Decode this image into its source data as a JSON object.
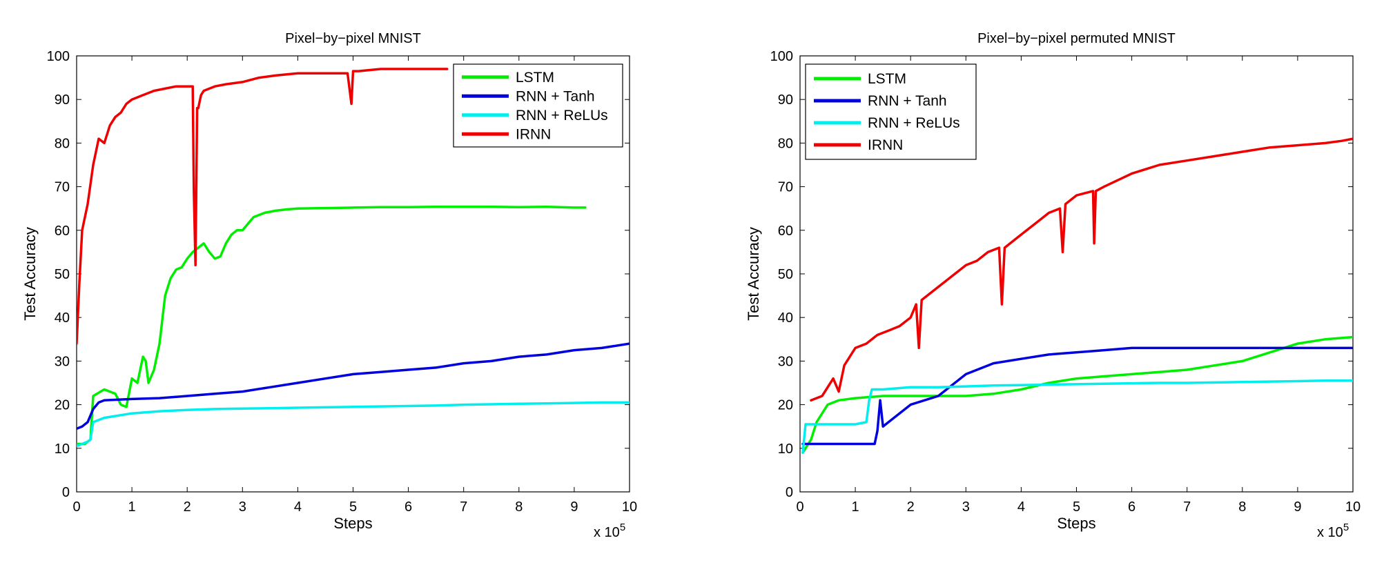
{
  "chart_data": [
    {
      "type": "line",
      "title": "Pixel−by−pixel MNIST",
      "xlabel": "Steps",
      "ylabel": "Test Accuracy",
      "x_multiplier": "x 10",
      "x_multiplier_exp": "5",
      "xlim": [
        0,
        10
      ],
      "ylim": [
        0,
        100
      ],
      "xticks": [
        "0",
        "1",
        "2",
        "3",
        "4",
        "5",
        "6",
        "7",
        "8",
        "9",
        "10"
      ],
      "yticks": [
        "0",
        "10",
        "20",
        "30",
        "40",
        "50",
        "60",
        "70",
        "80",
        "90",
        "100"
      ],
      "grid": false,
      "legend_position": "top-right",
      "series": [
        {
          "name": "LSTM",
          "color": "#00ee00",
          "x": [
            0,
            0.15,
            0.25,
            0.3,
            0.5,
            0.7,
            0.8,
            0.9,
            1.0,
            1.1,
            1.2,
            1.25,
            1.3,
            1.4,
            1.5,
            1.6,
            1.7,
            1.8,
            1.9,
            2.0,
            2.1,
            2.2,
            2.3,
            2.4,
            2.5,
            2.6,
            2.7,
            2.8,
            2.9,
            3.0,
            3.2,
            3.4,
            3.6,
            3.8,
            4.0,
            4.5,
            5.0,
            5.5,
            6.0,
            6.5,
            7.0,
            7.5,
            8.0,
            8.5,
            9.0,
            9.2
          ],
          "y": [
            11,
            11,
            12,
            22,
            23.5,
            22.5,
            20,
            19.5,
            26,
            25,
            31,
            30,
            25,
            28,
            34,
            45,
            49,
            51,
            51.5,
            53.5,
            55,
            56,
            57,
            55,
            53.5,
            54,
            57,
            59,
            60,
            60,
            63,
            64,
            64.5,
            64.8,
            65,
            65.1,
            65.2,
            65.3,
            65.3,
            65.4,
            65.4,
            65.4,
            65.3,
            65.4,
            65.2,
            65.2
          ]
        },
        {
          "name": "RNN + Tanh",
          "color": "#0000dd",
          "x": [
            0,
            0.1,
            0.2,
            0.3,
            0.4,
            0.5,
            1.0,
            1.5,
            2.0,
            2.5,
            3.0,
            3.5,
            4.0,
            4.5,
            5.0,
            5.5,
            6.0,
            6.5,
            7.0,
            7.5,
            8.0,
            8.5,
            9.0,
            9.5,
            10.0
          ],
          "y": [
            14.5,
            15,
            16,
            19,
            20.5,
            21,
            21.3,
            21.5,
            22,
            22.5,
            23,
            24,
            25,
            26,
            27,
            27.5,
            28,
            28.5,
            29.5,
            30,
            31,
            31.5,
            32.5,
            33,
            34
          ]
        },
        {
          "name": "RNN + ReLUs",
          "color": "#00eeee",
          "x": [
            0,
            0.1,
            0.2,
            0.25,
            0.3,
            0.5,
            1.0,
            1.5,
            2.0,
            2.5,
            3.0,
            3.5,
            4.0,
            4.5,
            5.0,
            5.5,
            6.0,
            6.5,
            7.0,
            7.5,
            8.0,
            8.5,
            9.0,
            9.5,
            10.0
          ],
          "y": [
            10.5,
            11,
            11.5,
            12,
            16,
            17,
            18,
            18.5,
            18.8,
            19,
            19.1,
            19.2,
            19.3,
            19.4,
            19.5,
            19.6,
            19.7,
            19.8,
            20,
            20.1,
            20.2,
            20.3,
            20.4,
            20.5,
            20.5
          ]
        },
        {
          "name": "IRNN",
          "color": "#ee0000",
          "x": [
            0,
            0.05,
            0.1,
            0.2,
            0.3,
            0.4,
            0.5,
            0.6,
            0.7,
            0.8,
            0.9,
            1.0,
            1.2,
            1.4,
            1.6,
            1.8,
            2.0,
            2.1,
            2.12,
            2.15,
            2.18,
            2.2,
            2.25,
            2.3,
            2.5,
            2.7,
            3.0,
            3.3,
            3.6,
            4.0,
            4.5,
            4.9,
            4.97,
            5.0,
            5.1,
            5.5,
            6.0,
            6.3,
            6.7
          ],
          "y": [
            34,
            48,
            60,
            66,
            75,
            81,
            80,
            84,
            86,
            87,
            89,
            90,
            91,
            92,
            92.5,
            93,
            93,
            93,
            69,
            52,
            88,
            88,
            91,
            92,
            93,
            93.5,
            94,
            95,
            95.5,
            96,
            96,
            96,
            89,
            96.5,
            96.5,
            97,
            97,
            97,
            97
          ]
        }
      ]
    },
    {
      "type": "line",
      "title": "Pixel−by−pixel permuted MNIST",
      "xlabel": "Steps",
      "ylabel": "Test Accuracy",
      "x_multiplier": "x 10",
      "x_multiplier_exp": "5",
      "xlim": [
        0,
        10
      ],
      "ylim": [
        0,
        100
      ],
      "xticks": [
        "0",
        "1",
        "2",
        "3",
        "4",
        "5",
        "6",
        "7",
        "8",
        "9",
        "10"
      ],
      "yticks": [
        "0",
        "10",
        "20",
        "30",
        "40",
        "50",
        "60",
        "70",
        "80",
        "90",
        "100"
      ],
      "grid": false,
      "legend_position": "top-left",
      "series": [
        {
          "name": "LSTM",
          "color": "#00ee00",
          "x": [
            0.05,
            0.2,
            0.3,
            0.5,
            0.7,
            1.0,
            1.5,
            2.0,
            2.5,
            3.0,
            3.5,
            4.0,
            4.5,
            5.0,
            5.5,
            6.0,
            6.5,
            7.0,
            7.5,
            8.0,
            8.5,
            9.0,
            9.5,
            10.0
          ],
          "y": [
            9,
            12,
            16,
            20,
            21,
            21.5,
            22,
            22,
            22,
            22,
            22.5,
            23.5,
            25,
            26,
            26.5,
            27,
            27.5,
            28,
            29,
            30,
            32,
            34,
            35,
            35.5
          ]
        },
        {
          "name": "RNN + Tanh",
          "color": "#0000dd",
          "x": [
            0.05,
            0.5,
            1.0,
            1.35,
            1.4,
            1.45,
            1.5,
            1.6,
            2.0,
            2.5,
            3.0,
            3.5,
            4.0,
            4.5,
            5.0,
            5.5,
            6.0,
            6.5,
            7.0,
            7.5,
            8.0,
            8.5,
            9.0,
            9.5,
            10.0
          ],
          "y": [
            11,
            11,
            11,
            11,
            14,
            21,
            15,
            16,
            20,
            22,
            27,
            29.5,
            30.5,
            31.5,
            32,
            32.5,
            33,
            33,
            33,
            33,
            33,
            33,
            33,
            33,
            33
          ]
        },
        {
          "name": "RNN + ReLUs",
          "color": "#00eeee",
          "x": [
            0.05,
            0.1,
            0.5,
            1.0,
            1.2,
            1.25,
            1.3,
            1.5,
            2.0,
            2.5,
            3.0,
            3.5,
            4.0,
            4.5,
            5.0,
            5.5,
            6.0,
            6.5,
            7.0,
            7.5,
            8.0,
            8.5,
            9.0,
            9.5,
            10.0
          ],
          "y": [
            9,
            15.5,
            15.5,
            15.5,
            16,
            21,
            23.5,
            23.5,
            24,
            24,
            24.2,
            24.4,
            24.5,
            24.6,
            24.7,
            24.8,
            24.9,
            25,
            25,
            25.1,
            25.2,
            25.3,
            25.4,
            25.5,
            25.5
          ]
        },
        {
          "name": "IRNN",
          "color": "#ee0000",
          "x": [
            0.2,
            0.4,
            0.6,
            0.7,
            0.8,
            1.0,
            1.2,
            1.4,
            1.6,
            1.8,
            2.0,
            2.1,
            2.15,
            2.2,
            2.4,
            2.6,
            2.8,
            3.0,
            3.2,
            3.4,
            3.6,
            3.65,
            3.7,
            3.9,
            4.1,
            4.3,
            4.5,
            4.7,
            4.75,
            4.8,
            5.0,
            5.3,
            5.32,
            5.35,
            5.5,
            6.0,
            6.5,
            7.0,
            7.5,
            8.0,
            8.5,
            9.0,
            9.5,
            9.8,
            10.0
          ],
          "y": [
            21,
            22,
            26,
            23,
            29,
            33,
            34,
            36,
            37,
            38,
            40,
            43,
            33,
            44,
            46,
            48,
            50,
            52,
            53,
            55,
            56,
            43,
            56,
            58,
            60,
            62,
            64,
            65,
            55,
            66,
            68,
            69,
            57,
            69,
            70,
            73,
            75,
            76,
            77,
            78,
            79,
            79.5,
            80,
            80.5,
            81
          ]
        }
      ]
    }
  ]
}
